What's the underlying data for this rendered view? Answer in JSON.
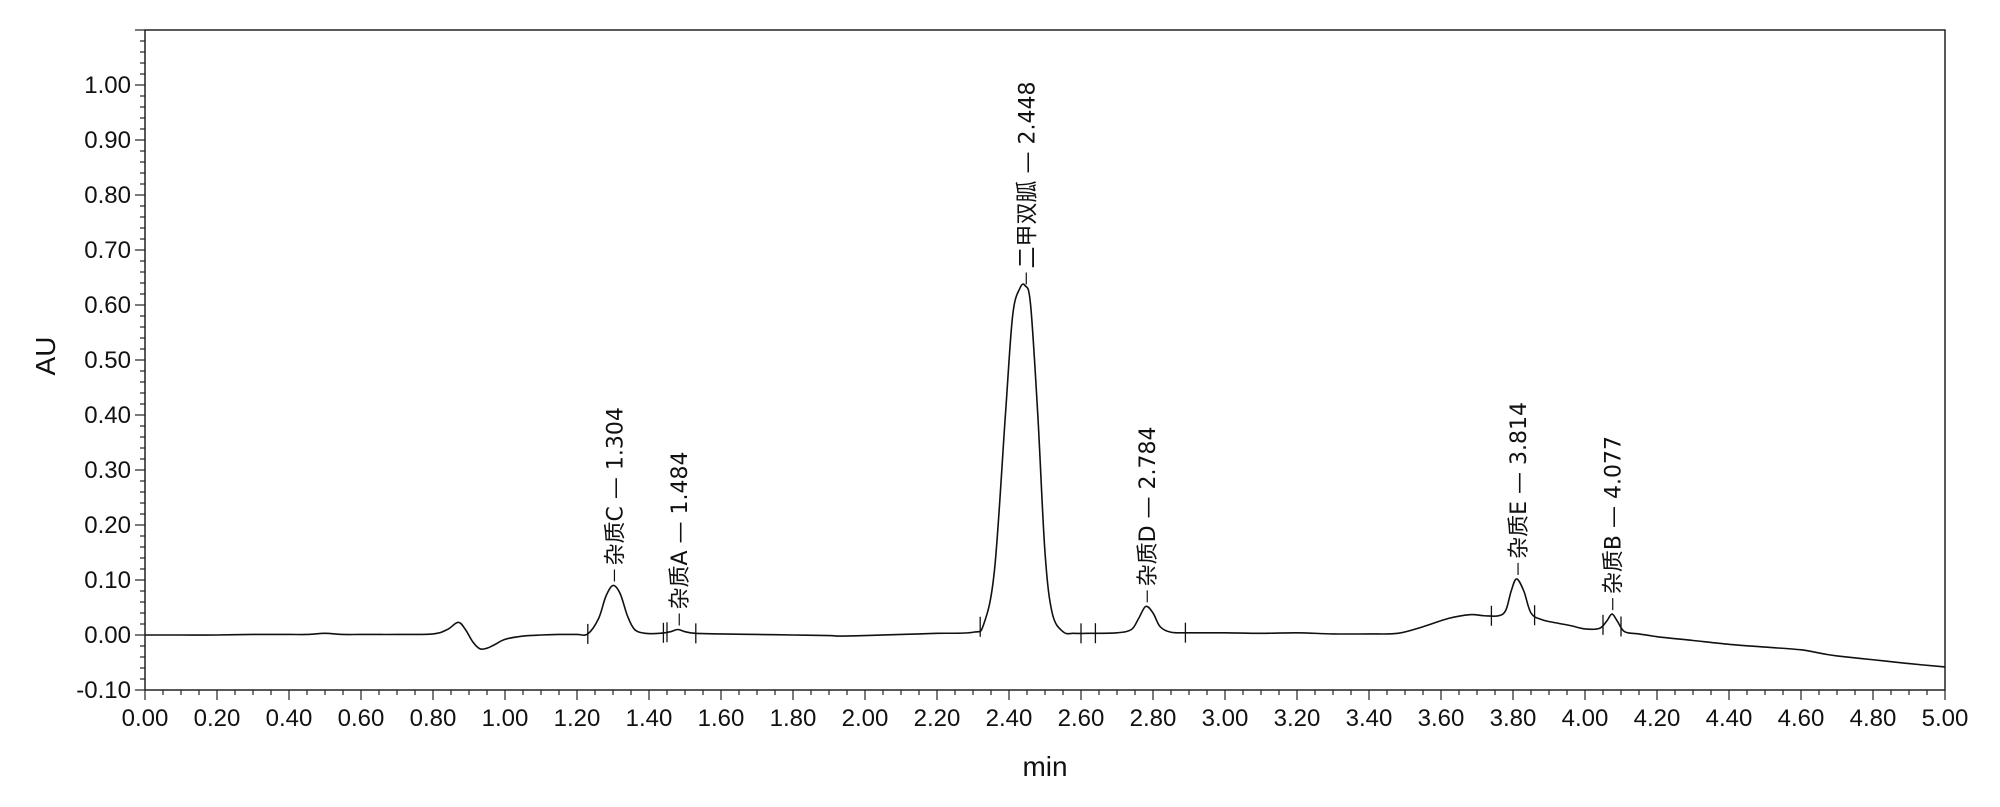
{
  "chart_data": {
    "type": "line",
    "xlabel": "min",
    "ylabel": "AU",
    "xlim": [
      0.0,
      5.0
    ],
    "ylim": [
      -0.1,
      1.1
    ],
    "grid": false,
    "x_ticks": [
      "0.00",
      "0.20",
      "0.40",
      "0.60",
      "0.80",
      "1.00",
      "1.20",
      "1.40",
      "1.60",
      "1.80",
      "2.00",
      "2.20",
      "2.40",
      "2.60",
      "2.80",
      "3.00",
      "3.20",
      "3.40",
      "3.60",
      "3.80",
      "4.00",
      "4.20",
      "4.40",
      "4.60",
      "4.80",
      "5.00"
    ],
    "y_ticks": [
      "-0.10",
      "0.00",
      "0.10",
      "0.20",
      "0.30",
      "0.40",
      "0.50",
      "0.60",
      "0.70",
      "0.80",
      "0.90",
      "1.00"
    ],
    "peaks": [
      {
        "name": "杂质C",
        "rt": 1.304,
        "label": "杂质C — 1.304",
        "height": 0.09,
        "start": 1.23,
        "end": 1.45
      },
      {
        "name": "杂质A",
        "rt": 1.484,
        "label": "杂质A — 1.484",
        "height": 0.01,
        "start": 1.44,
        "end": 1.53
      },
      {
        "name": "二甲双胍",
        "rt": 2.448,
        "label": "二甲双胍 — 2.448",
        "height": 0.63,
        "start": 2.32,
        "end": 2.6
      },
      {
        "name": "杂质D",
        "rt": 2.784,
        "label": "杂质D — 2.784",
        "height": 0.052,
        "start": 2.64,
        "end": 2.89
      },
      {
        "name": "杂质E",
        "rt": 3.814,
        "label": "杂质E — 3.814",
        "height": 0.102,
        "start": 3.74,
        "end": 3.86
      },
      {
        "name": "杂质B",
        "rt": 4.077,
        "label": "杂质B — 4.077",
        "height": 0.038,
        "start": 4.05,
        "end": 4.1
      }
    ],
    "trace": {
      "x": [
        0.0,
        0.1,
        0.2,
        0.3,
        0.4,
        0.45,
        0.5,
        0.55,
        0.6,
        0.7,
        0.8,
        0.84,
        0.87,
        0.89,
        0.91,
        0.93,
        0.95,
        0.97,
        1.0,
        1.05,
        1.1,
        1.15,
        1.2,
        1.23,
        1.26,
        1.28,
        1.3,
        1.32,
        1.34,
        1.36,
        1.39,
        1.43,
        1.46,
        1.48,
        1.5,
        1.53,
        1.6,
        1.7,
        1.8,
        1.9,
        1.93,
        2.0,
        2.1,
        2.2,
        2.3,
        2.33,
        2.36,
        2.39,
        2.41,
        2.43,
        2.445,
        2.46,
        2.48,
        2.5,
        2.52,
        2.55,
        2.58,
        2.62,
        2.7,
        2.74,
        2.76,
        2.78,
        2.8,
        2.82,
        2.85,
        2.9,
        3.0,
        3.1,
        3.2,
        3.3,
        3.4,
        3.48,
        3.55,
        3.62,
        3.68,
        3.72,
        3.76,
        3.78,
        3.795,
        3.81,
        3.83,
        3.85,
        3.88,
        3.92,
        3.96,
        4.0,
        4.04,
        4.06,
        4.075,
        4.09,
        4.11,
        4.15,
        4.2,
        4.3,
        4.4,
        4.5,
        4.6,
        4.66,
        4.7,
        4.8,
        4.9,
        5.0
      ],
      "y": [
        0.0,
        0.0,
        0.0,
        0.001,
        0.001,
        0.001,
        0.003,
        0.001,
        0.001,
        0.001,
        0.002,
        0.01,
        0.023,
        0.01,
        -0.012,
        -0.025,
        -0.024,
        -0.018,
        -0.008,
        -0.002,
        0.0,
        0.001,
        0.001,
        0.002,
        0.03,
        0.07,
        0.09,
        0.075,
        0.035,
        0.01,
        0.003,
        0.003,
        0.006,
        0.01,
        0.006,
        0.003,
        0.002,
        0.001,
        0.0,
        -0.001,
        -0.002,
        -0.001,
        0.001,
        0.003,
        0.005,
        0.02,
        0.12,
        0.4,
        0.58,
        0.63,
        0.635,
        0.6,
        0.4,
        0.15,
        0.04,
        0.006,
        0.003,
        0.003,
        0.004,
        0.01,
        0.03,
        0.052,
        0.04,
        0.015,
        0.005,
        0.004,
        0.004,
        0.003,
        0.004,
        0.002,
        0.002,
        0.003,
        0.015,
        0.03,
        0.037,
        0.035,
        0.035,
        0.045,
        0.08,
        0.102,
        0.08,
        0.04,
        0.028,
        0.022,
        0.017,
        0.011,
        0.012,
        0.025,
        0.038,
        0.025,
        0.006,
        0.002,
        -0.003,
        -0.01,
        -0.017,
        -0.022,
        -0.027,
        -0.034,
        -0.038,
        -0.045,
        -0.052,
        -0.058
      ]
    }
  }
}
